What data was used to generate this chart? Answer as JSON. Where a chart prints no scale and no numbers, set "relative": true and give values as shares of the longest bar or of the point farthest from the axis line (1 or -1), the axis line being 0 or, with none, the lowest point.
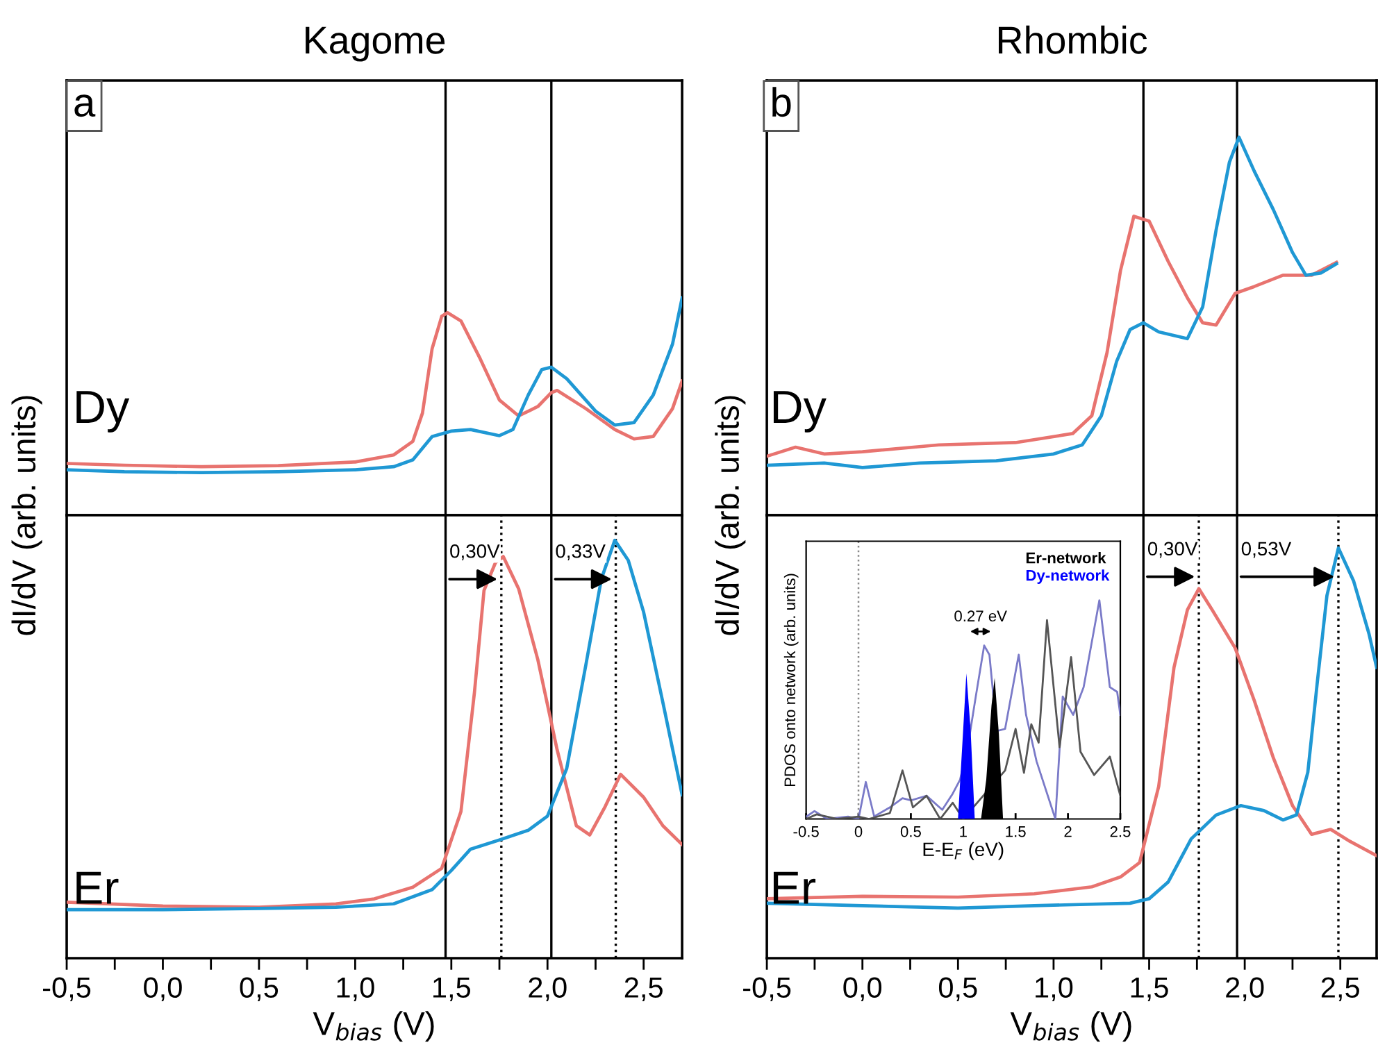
{
  "chart_data": [
    {
      "type": "line",
      "relative": true,
      "title": "Kagome",
      "ylabel": "dI/dV (arb. units)",
      "xlim": [
        -0.5,
        2.7
      ],
      "tick_labels": false,
      "annotations": [
        "a",
        "Dy"
      ],
      "ref_lines": [
        {
          "axis": "x",
          "value": 1.47,
          "color": "#000000",
          "line_style": "solid"
        },
        {
          "axis": "x",
          "value": 2.02,
          "color": "#000000",
          "line_style": "solid"
        }
      ],
      "series": [
        {
          "color": "#e8736f",
          "x": [
            -0.5,
            -0.2,
            0.2,
            0.6,
            1.0,
            1.2,
            1.3,
            1.35,
            1.4,
            1.45,
            1.48,
            1.55,
            1.65,
            1.75,
            1.85,
            1.95,
            2.02,
            2.05,
            2.2,
            2.35,
            2.45,
            2.55,
            2.65,
            2.7
          ],
          "values": [
            0.238,
            0.23,
            0.223,
            0.228,
            0.245,
            0.277,
            0.34,
            0.47,
            0.766,
            0.915,
            0.932,
            0.894,
            0.72,
            0.53,
            0.457,
            0.5,
            0.564,
            0.574,
            0.49,
            0.394,
            0.351,
            0.362,
            0.49,
            0.617
          ]
        },
        {
          "color": "#1f98d4",
          "x": [
            -0.5,
            -0.2,
            0.2,
            0.6,
            1.0,
            1.2,
            1.3,
            1.4,
            1.5,
            1.6,
            1.75,
            1.82,
            1.9,
            1.97,
            2.02,
            2.1,
            2.25,
            2.35,
            2.45,
            2.55,
            2.65,
            2.7
          ],
          "values": [
            0.209,
            0.2,
            0.196,
            0.2,
            0.209,
            0.223,
            0.255,
            0.362,
            0.387,
            0.394,
            0.366,
            0.394,
            0.553,
            0.67,
            0.681,
            0.628,
            0.479,
            0.415,
            0.426,
            0.553,
            0.787,
            1.0
          ]
        }
      ]
    },
    {
      "type": "line",
      "relative": true,
      "xlabel": "V$_{bias}$ (V)",
      "xlim": [
        -0.5,
        2.7
      ],
      "tick_labels": "x",
      "xticks": [
        {
          "value": -0.5,
          "label": "-0,5"
        },
        {
          "value": -0.25,
          "label": null
        },
        {
          "value": 0,
          "label": "0,0"
        },
        {
          "value": 0.25,
          "label": null
        },
        {
          "value": 0.5,
          "label": "0,5"
        },
        {
          "value": 0.75,
          "label": null
        },
        {
          "value": 1,
          "label": "1,0"
        },
        {
          "value": 1.25,
          "label": null
        },
        {
          "value": 1.5,
          "label": "1,5"
        },
        {
          "value": 1.75,
          "label": null
        },
        {
          "value": 2,
          "label": "2,0"
        },
        {
          "value": 2.25,
          "label": null
        },
        {
          "value": 2.5,
          "label": "2,5"
        }
      ],
      "annotations": [
        "Er",
        {
          "text": "0,30V",
          "x": 1.76,
          "y": 0.907
        },
        {
          "text": "0,33V",
          "x": 2.355,
          "y": 0.907
        }
      ],
      "ref_lines": [
        {
          "axis": "x",
          "value": 1.47,
          "color": "#000000",
          "line_style": "solid"
        },
        {
          "axis": "x",
          "value": 2.02,
          "color": "#000000",
          "line_style": "solid"
        },
        {
          "axis": "x",
          "value": 1.76,
          "color": "#000000",
          "line_style": "dotted"
        },
        {
          "axis": "x",
          "value": 2.355,
          "color": "#000000",
          "line_style": "dotted"
        }
      ],
      "series": [
        {
          "color": "#e8736f",
          "x": [
            -0.5,
            0.0,
            0.5,
            0.9,
            1.1,
            1.3,
            1.45,
            1.55,
            1.62,
            1.67,
            1.73,
            1.77,
            1.85,
            1.95,
            2.05,
            2.15,
            2.22,
            2.3,
            2.38,
            2.5,
            2.6,
            2.7
          ],
          "values": [
            0.134,
            0.125,
            0.122,
            0.13,
            0.142,
            0.17,
            0.215,
            0.351,
            0.635,
            0.88,
            0.947,
            0.961,
            0.884,
            0.714,
            0.499,
            0.317,
            0.295,
            0.363,
            0.44,
            0.385,
            0.317,
            0.272
          ]
        },
        {
          "color": "#1f98d4",
          "x": [
            -0.5,
            0.0,
            0.5,
            0.9,
            1.2,
            1.4,
            1.5,
            1.6,
            1.75,
            1.9,
            2.0,
            2.1,
            2.2,
            2.28,
            2.35,
            2.42,
            2.5,
            2.6,
            2.7
          ],
          "values": [
            0.116,
            0.116,
            0.119,
            0.122,
            0.13,
            0.164,
            0.21,
            0.261,
            0.283,
            0.306,
            0.34,
            0.454,
            0.703,
            0.907,
            1.0,
            0.952,
            0.828,
            0.612,
            0.391
          ]
        }
      ]
    },
    {
      "type": "line",
      "relative": true,
      "title": "Rhombic",
      "ylabel": "dI/dV (arb. units)",
      "xlim": [
        -0.5,
        2.69
      ],
      "tick_labels": false,
      "annotations": [
        "b",
        "Dy"
      ],
      "ref_lines": [
        {
          "axis": "x",
          "value": 1.47,
          "color": "#000000",
          "line_style": "solid"
        },
        {
          "axis": "x",
          "value": 1.96,
          "color": "#000000",
          "line_style": "solid"
        }
      ],
      "series": [
        {
          "color": "#e8736f",
          "x": [
            -0.5,
            -0.35,
            -0.2,
            0.0,
            0.4,
            0.8,
            1.1,
            1.2,
            1.28,
            1.35,
            1.42,
            1.5,
            1.6,
            1.7,
            1.78,
            1.85,
            1.95,
            2.05,
            2.2,
            2.35,
            2.48
          ],
          "values": [
            0.156,
            0.18,
            0.162,
            0.168,
            0.186,
            0.192,
            0.216,
            0.263,
            0.431,
            0.647,
            0.791,
            0.778,
            0.671,
            0.575,
            0.509,
            0.503,
            0.587,
            0.605,
            0.635,
            0.635,
            0.669
          ]
        },
        {
          "color": "#1f98d4",
          "x": [
            -0.5,
            -0.2,
            0.0,
            0.3,
            0.7,
            1.0,
            1.15,
            1.25,
            1.33,
            1.4,
            1.47,
            1.55,
            1.7,
            1.78,
            1.85,
            1.92,
            1.97,
            2.05,
            2.15,
            2.25,
            2.32,
            2.4,
            2.48
          ],
          "values": [
            0.132,
            0.138,
            0.126,
            0.138,
            0.144,
            0.162,
            0.186,
            0.263,
            0.407,
            0.491,
            0.509,
            0.485,
            0.467,
            0.551,
            0.754,
            0.934,
            1.0,
            0.91,
            0.808,
            0.695,
            0.635,
            0.641,
            0.665
          ]
        }
      ]
    },
    {
      "type": "line",
      "relative": true,
      "xlabel": "V$_{bias}$ (V)",
      "xlim": [
        -0.5,
        2.69
      ],
      "tick_labels": "x",
      "xticks": [
        {
          "value": -0.5,
          "label": "-0,5"
        },
        {
          "value": -0.25,
          "label": null
        },
        {
          "value": 0,
          "label": "0,0"
        },
        {
          "value": 0.25,
          "label": null
        },
        {
          "value": 0.5,
          "label": "0,5"
        },
        {
          "value": 0.75,
          "label": null
        },
        {
          "value": 1,
          "label": "1,0"
        },
        {
          "value": 1.25,
          "label": null
        },
        {
          "value": 1.5,
          "label": "1,5"
        },
        {
          "value": 1.75,
          "label": null
        },
        {
          "value": 2,
          "label": "2,0"
        },
        {
          "value": 2.25,
          "label": null
        },
        {
          "value": 2.5,
          "label": "2,5"
        }
      ],
      "annotations": [
        "Er",
        {
          "text": "0,30V",
          "x": 1.76,
          "y": 0.93
        },
        {
          "text": "0,53V",
          "x": 2.49,
          "y": 0.93
        }
      ],
      "ref_lines": [
        {
          "axis": "x",
          "value": 1.47,
          "color": "#000000",
          "line_style": "solid"
        },
        {
          "axis": "x",
          "value": 1.96,
          "color": "#000000",
          "line_style": "solid"
        },
        {
          "axis": "x",
          "value": 1.76,
          "color": "#000000",
          "line_style": "dotted"
        },
        {
          "axis": "x",
          "value": 2.49,
          "color": "#000000",
          "line_style": "dotted"
        }
      ],
      "series": [
        {
          "color": "#e8736f",
          "x": [
            -0.5,
            0.0,
            0.5,
            0.9,
            1.2,
            1.35,
            1.45,
            1.55,
            1.63,
            1.7,
            1.76,
            1.83,
            1.95,
            2.05,
            2.15,
            2.25,
            2.35,
            2.45,
            2.55,
            2.69
          ],
          "values": [
            0.145,
            0.151,
            0.149,
            0.157,
            0.174,
            0.198,
            0.233,
            0.419,
            0.709,
            0.849,
            0.901,
            0.849,
            0.756,
            0.628,
            0.488,
            0.372,
            0.302,
            0.314,
            0.285,
            0.25
          ]
        },
        {
          "color": "#1f98d4",
          "x": [
            -0.5,
            0.0,
            0.5,
            0.9,
            1.4,
            1.5,
            1.6,
            1.72,
            1.85,
            1.98,
            2.1,
            2.2,
            2.27,
            2.33,
            2.38,
            2.43,
            2.49,
            2.57,
            2.65,
            2.69
          ],
          "values": [
            0.134,
            0.128,
            0.122,
            0.128,
            0.134,
            0.145,
            0.186,
            0.291,
            0.349,
            0.372,
            0.36,
            0.337,
            0.349,
            0.453,
            0.674,
            0.884,
            1.0,
            0.919,
            0.791,
            0.709
          ]
        }
      ]
    },
    {
      "type": "line",
      "relative": true,
      "xlabel": "E-E$_{F}$ (eV)",
      "ylabel": "PDOS onto network (arb. units)",
      "xlim": [
        -0.5,
        2.5
      ],
      "xticks": [
        -0.5,
        0,
        0.5,
        1,
        1.5,
        2,
        2.5
      ],
      "tick_labels": "x",
      "legend": "top right",
      "annotations": [
        "0.27 eV"
      ],
      "ref_lines": [
        {
          "axis": "x",
          "value": 0,
          "color": "#888888",
          "line_style": "dotted"
        }
      ],
      "series": [
        {
          "color": "#7a7ac8",
          "x": [
            -0.5,
            -0.42,
            -0.3,
            -0.1,
            0.0,
            0.07,
            0.15,
            0.3,
            0.42,
            0.5,
            0.65,
            0.8,
            0.9,
            0.97,
            1.05,
            1.12,
            1.2,
            1.25,
            1.32,
            1.4,
            1.53,
            1.6,
            1.7,
            1.88,
            1.95,
            2.05,
            2.15,
            2.3,
            2.4,
            2.47,
            2.5
          ],
          "values": [
            0.01,
            0.036,
            0,
            0.011,
            0,
            0.169,
            0.011,
            0.053,
            0.095,
            0.085,
            0.106,
            0.042,
            0.116,
            0.18,
            0.349,
            0.56,
            0.793,
            0.751,
            0.402,
            0.412,
            0.751,
            0.476,
            0.264,
            0,
            0.56,
            0.476,
            0.603,
            1.0,
            0.603,
            0.581,
            0.476
          ]
        },
        {
          "color": "#555555",
          "x": [
            -0.5,
            -0.4,
            -0.2,
            0.0,
            0.1,
            0.3,
            0.42,
            0.52,
            0.65,
            0.78,
            0.9,
            1.0,
            1.4,
            1.5,
            1.58,
            1.65,
            1.72,
            1.8,
            1.92,
            2.03,
            2.12,
            2.25,
            2.4,
            2.5
          ],
          "values": [
            0,
            0.021,
            0,
            0.011,
            0,
            0.027,
            0.222,
            0.053,
            0.106,
            0,
            0.074,
            0,
            0.222,
            0.412,
            0.211,
            0.433,
            0.349,
            0.909,
            0.328,
            0.74,
            0.307,
            0.201,
            0.285,
            0.106
          ]
        },
        {
          "type": "area",
          "name": "Er-network",
          "color": "#000000",
          "x": [
            1.17,
            1.22,
            1.27,
            1.3,
            1.34,
            1.38
          ],
          "values": [
            0,
            0.18,
            0.518,
            0.645,
            0.391,
            0
          ]
        },
        {
          "type": "area",
          "name": "Dy-network",
          "color": "#0000ff",
          "x": [
            0.95,
            1.0,
            1.03,
            1.07,
            1.11
          ],
          "values": [
            0,
            0.412,
            0.666,
            0.412,
            0
          ]
        }
      ]
    }
  ]
}
